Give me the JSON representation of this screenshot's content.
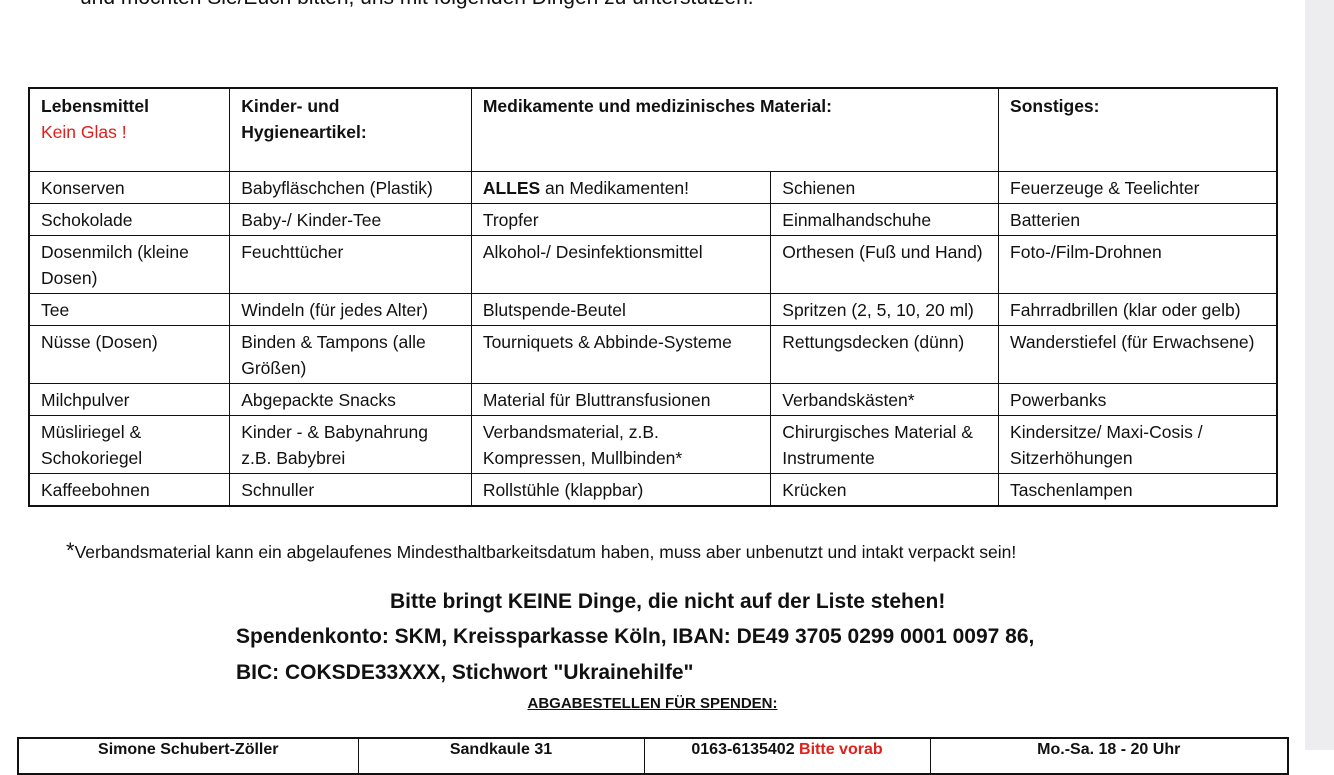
{
  "intro_text": "und möchten Sie/Euch bitten, uns mit folgenden Dingen zu unterstützen.",
  "table": {
    "headers": [
      {
        "title": "Lebensmittel",
        "note": "Kein Glas !"
      },
      {
        "title": "Kinder- und Hygieneartikel:"
      },
      {
        "title": "Medikamente und medizinisches Material:"
      },
      {
        "title": "Sonstiges:"
      }
    ],
    "rows": [
      [
        "Konserven",
        "Babyfläschchen (Plastik)",
        "ALLES|an Medikamenten!",
        "Schienen",
        "Feuerzeuge & Teelichter"
      ],
      [
        "Schokolade",
        "Baby-/ Kinder-Tee",
        "Tropfer",
        "Einmalhandschuhe",
        "Batterien"
      ],
      [
        "Dosenmilch (kleine Dosen)",
        "Feuchttücher",
        "Alkohol-/ Desinfektionsmittel",
        "Orthesen (Fuß und Hand)",
        "Foto-/Film-Drohnen"
      ],
      [
        "Tee",
        "Windeln (für jedes Alter)",
        "Blutspende-Beutel",
        "Spritzen (2, 5, 10, 20 ml)",
        "Fahrradbrillen (klar oder gelb)"
      ],
      [
        "Nüsse (Dosen)",
        "Binden & Tampons (alle Größen)",
        "Tourniquets & Abbinde-Systeme",
        "Rettungsdecken (dünn)",
        "Wanderstiefel (für Erwachsene)"
      ],
      [
        "Milchpulver",
        "Abgepackte Snacks",
        "Material für Bluttransfusionen",
        "Verbandskästen*",
        "Powerbanks"
      ],
      [
        "Müsliriegel & Schokoriegel",
        "Kinder - & Babynahrung z.B. Babybrei",
        "Verbandsmaterial, z.B. Kompressen, Mullbinden*",
        "Chirurgisches Material & Instrumente",
        "Kindersitze/ Maxi-Cosis / Sitzerhöhungen"
      ],
      [
        "Kaffeebohnen",
        "Schnuller",
        "Rollstühle (klappbar)",
        "Krücken",
        "Taschenlampen"
      ]
    ]
  },
  "footnote": {
    "star": "*",
    "text": "Verbandsmaterial kann ein abgelaufenes Mindesthaltbarkeitsdatum haben, muss aber unbenutzt und intakt verpackt sein!"
  },
  "notice": "Bitte bringt KEINE Dinge, die nicht auf der Liste stehen!",
  "bank_line1": "Spendenkonto: SKM, Kreissparkasse Köln, IBAN: DE49 3705 0299 0001 0097 86,",
  "bank_line2": "BIC: COKSDE33XXX, Stichwort \"Ukrainehilfe\"",
  "dropoff_heading": "ABGABESTELLEN FÜR SPENDEN:",
  "contacts": {
    "name": "Simone Schubert-Zöller",
    "address": "Sandkaule 31",
    "phone": "0163-6135402",
    "phone_note": "Bitte vorab",
    "hours": "Mo.-Sa. 18 - 20 Uhr"
  },
  "colors": {
    "accent_red": "#e0201b"
  }
}
